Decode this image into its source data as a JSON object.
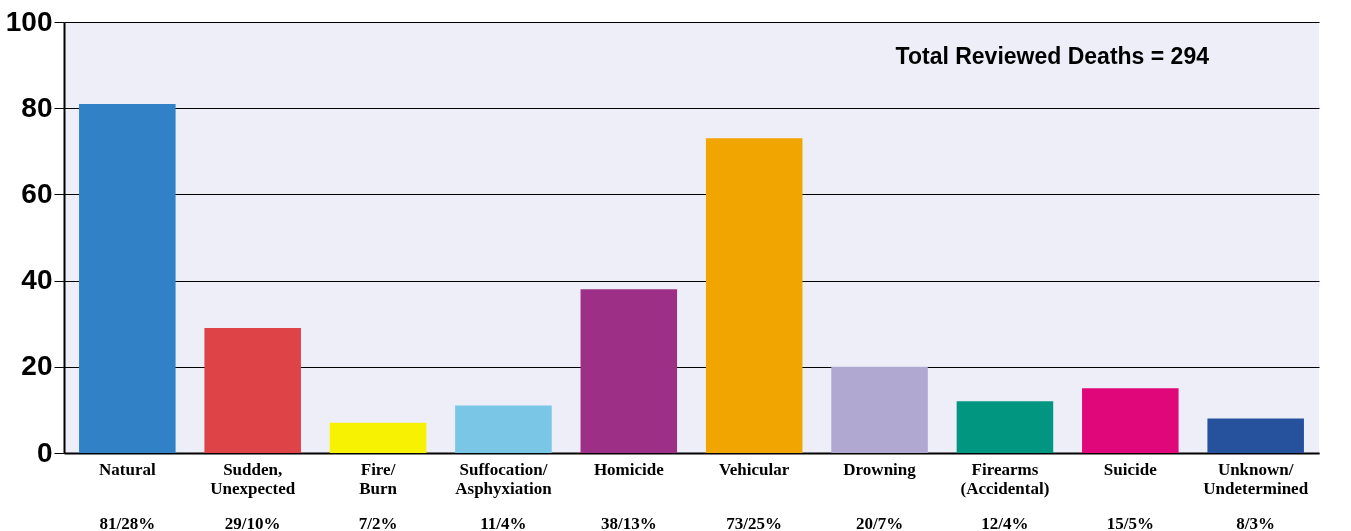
{
  "chart_data": {
    "type": "bar",
    "categories": [
      "Natural",
      "Sudden,\nUnexpected",
      "Fire/\nBurn",
      "Suffocation/\nAsphyxiation",
      "Homicide",
      "Vehicular",
      "Drowning",
      "Firearms\n(Accidental)",
      "Suicide",
      "Unknown/\nUndetermined"
    ],
    "values": [
      81,
      29,
      7,
      11,
      38,
      73,
      20,
      12,
      15,
      8
    ],
    "colors": [
      "#3181c6",
      "#de4347",
      "#f7f202",
      "#79c6e6",
      "#9e2f86",
      "#f0a500",
      "#b1a8d1",
      "#009680",
      "#e0077a",
      "#26529d"
    ],
    "value_labels": [
      "81/28%",
      "29/10%",
      "7/2%",
      "11/4%",
      "38/13%",
      "73/25%",
      "20/7%",
      "12/4%",
      "15/5%",
      "8/3%"
    ],
    "ylim": [
      0,
      100
    ],
    "yticks": [
      0,
      20,
      40,
      60,
      80,
      100
    ],
    "grid": "y",
    "annotations": [
      "Total Reviewed Deaths = 294"
    ]
  }
}
